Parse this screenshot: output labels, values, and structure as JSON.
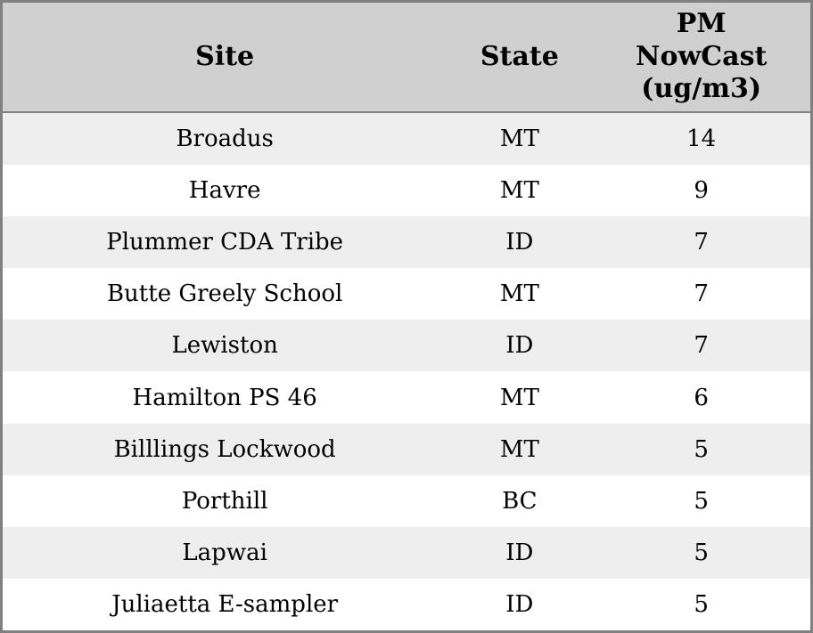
{
  "colors": {
    "header_bg": "#d0d0d0",
    "row_alt_bg": "#eeeeee",
    "row_bg": "#ffffff",
    "border": "#808080",
    "text": "#000000"
  },
  "chart_data": {
    "type": "table",
    "columns": [
      "Site",
      "State",
      "PM NowCast (ug/m3)"
    ],
    "header_display": [
      "Site",
      "State",
      "PM\nNowCast\n(ug/m3)"
    ],
    "rows": [
      [
        "Broadus",
        "MT",
        14
      ],
      [
        "Havre",
        "MT",
        9
      ],
      [
        "Plummer CDA Tribe",
        "ID",
        7
      ],
      [
        "Butte Greely School",
        "MT",
        7
      ],
      [
        "Lewiston",
        "ID",
        7
      ],
      [
        "Hamilton PS 46",
        "MT",
        6
      ],
      [
        "Billlings Lockwood",
        "MT",
        5
      ],
      [
        "Porthill",
        "BC",
        5
      ],
      [
        "Lapwai",
        "ID",
        5
      ],
      [
        "Juliaetta E-sampler",
        "ID",
        5
      ]
    ]
  }
}
